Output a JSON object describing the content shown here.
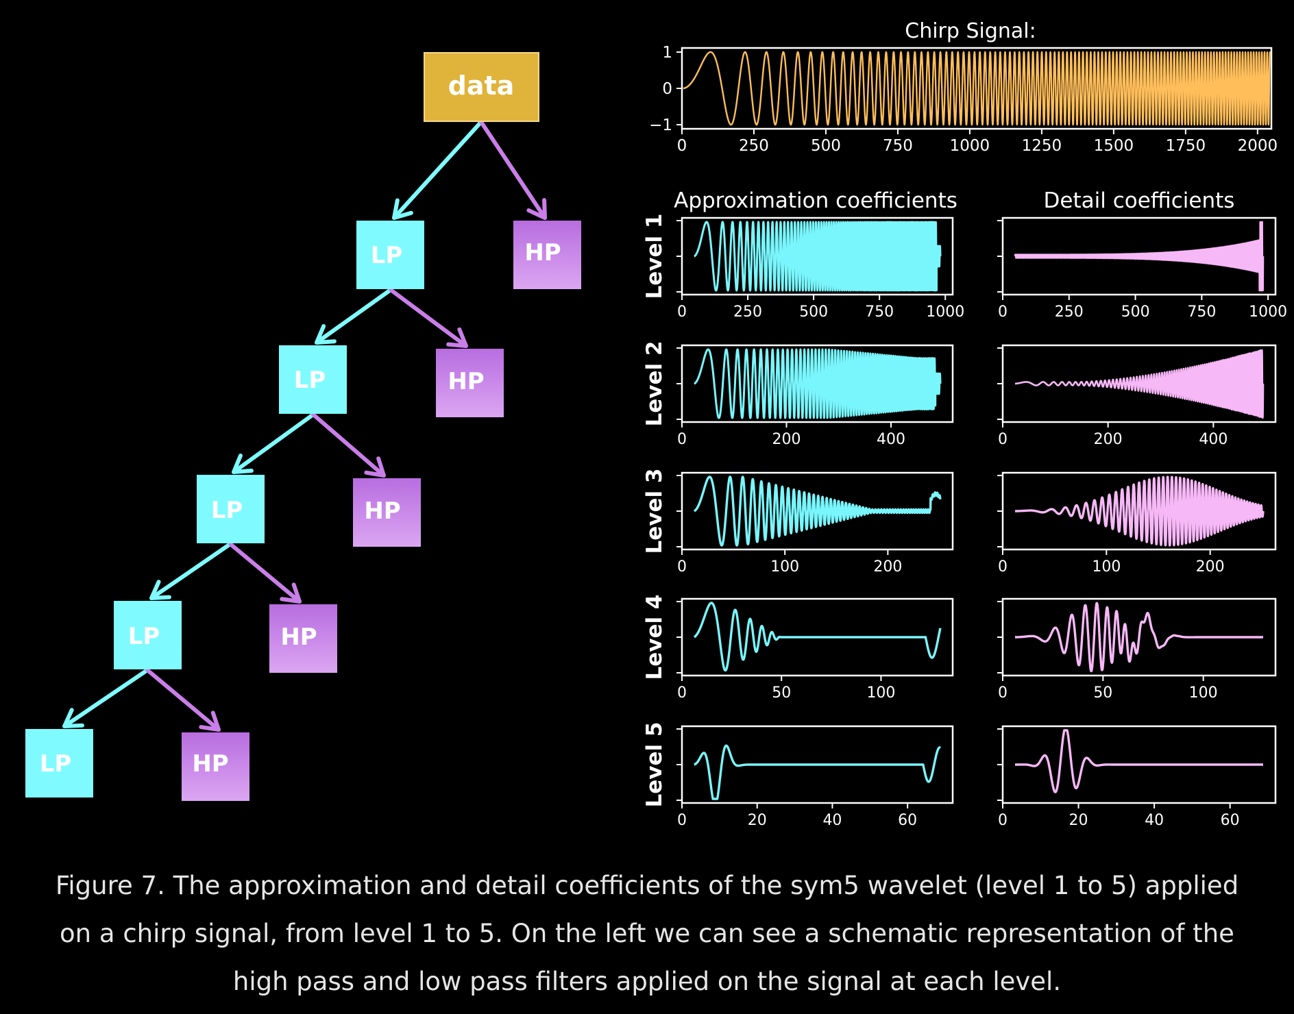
{
  "tree": {
    "root": "data",
    "levels": [
      {
        "lp": "LP",
        "hp": "HP"
      },
      {
        "lp": "LP",
        "hp": "HP"
      },
      {
        "lp": "LP",
        "hp": "HP"
      },
      {
        "lp": "LP",
        "hp": "HP"
      },
      {
        "lp": "LP",
        "hp": "HP"
      }
    ]
  },
  "colors": {
    "background": "#000000",
    "data_node": "#e0b33a",
    "lp": "#7ffbff",
    "hp": "#c97ee8",
    "chirp_line": "#ffbe5a",
    "approx_line": "#79f6fc",
    "detail_line": "#f7b8f7",
    "axis": "#ffffff",
    "caption": "#e6e6e6"
  },
  "chart_data": [
    {
      "type": "line",
      "title": "Chirp Signal:",
      "series": [
        {
          "values": "chirp sin(2π·f(t)·t), frequency increasing with t, amplitude 1"
        }
      ],
      "xlim": [
        0,
        2048
      ],
      "ylim": [
        -1,
        1
      ],
      "xticks": [
        "0",
        "250",
        "500",
        "750",
        "1000",
        "1250",
        "1500",
        "1750",
        "2000"
      ],
      "yticks": [
        "1",
        "0",
        "−1"
      ]
    },
    {
      "title": "Approximation coefficients",
      "type": "line",
      "panels": [
        {
          "ylabel": "Level 1",
          "xlim": [
            0,
            1028
          ],
          "xticks": [
            "0",
            "250",
            "500",
            "750",
            "1000"
          ]
        },
        {
          "ylabel": "Level 2",
          "xlim": [
            0,
            518
          ],
          "xticks": [
            "0",
            "200",
            "400"
          ]
        },
        {
          "ylabel": "Level 3",
          "xlim": [
            0,
            263
          ],
          "xticks": [
            "0",
            "100",
            "200"
          ]
        },
        {
          "ylabel": "Level 4",
          "xlim": [
            0,
            136
          ],
          "xticks": [
            "0",
            "50",
            "100"
          ]
        },
        {
          "ylabel": "Level 5",
          "xlim": [
            0,
            72
          ],
          "xticks": [
            "0",
            "20",
            "40",
            "60"
          ]
        }
      ]
    },
    {
      "title": "Detail coefficients",
      "type": "line",
      "panels": [
        {
          "xlim": [
            0,
            1028
          ],
          "xticks": [
            "0",
            "250",
            "500",
            "750",
            "1000"
          ]
        },
        {
          "xlim": [
            0,
            518
          ],
          "xticks": [
            "0",
            "200",
            "400"
          ]
        },
        {
          "xlim": [
            0,
            263
          ],
          "xticks": [
            "0",
            "100",
            "200"
          ]
        },
        {
          "xlim": [
            0,
            136
          ],
          "xticks": [
            "0",
            "50",
            "100"
          ]
        },
        {
          "xlim": [
            0,
            72
          ],
          "xticks": [
            "0",
            "20",
            "40",
            "60"
          ]
        }
      ]
    }
  ],
  "caption": "Figure 7. The approximation and detail coefficients of the sym5 wavelet (level 1 to 5) applied on a chirp signal, from level 1 to 5. On the left we can see a schematic representation of the high pass and low pass filters applied on the signal at each level."
}
